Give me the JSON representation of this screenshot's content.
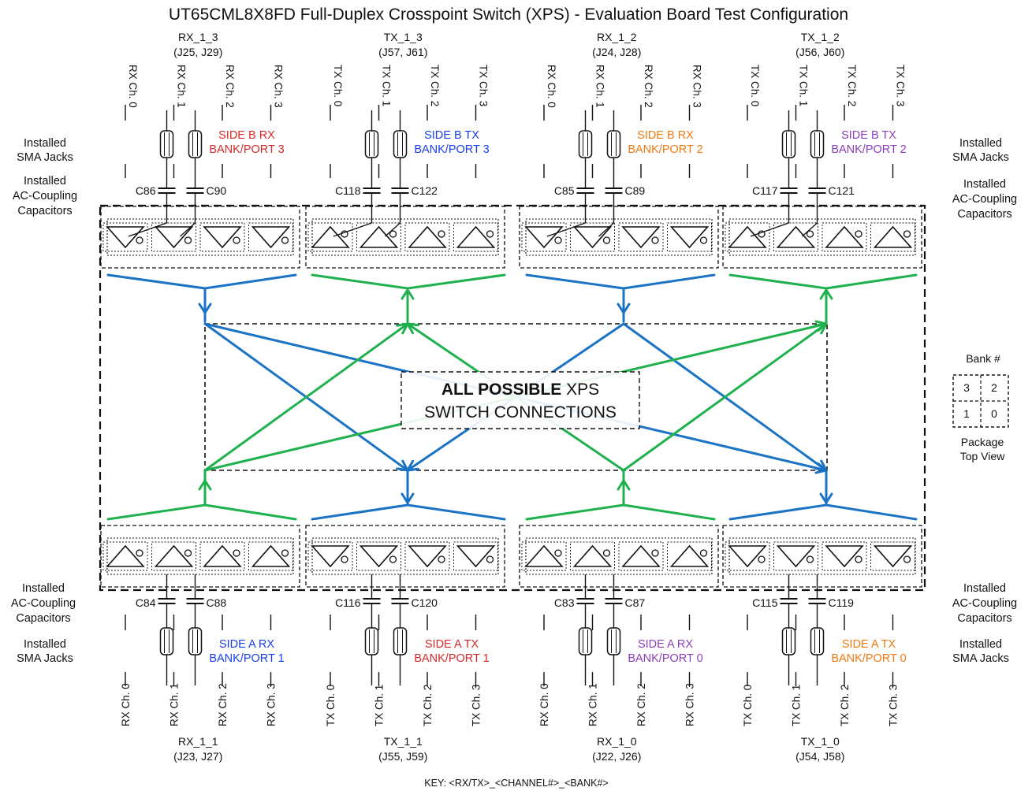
{
  "title": "UT65CML8X8FD Full-Duplex Crosspoint Switch (XPS) - Evaluation Board Test Configuration",
  "side_labels": {
    "left_top_sma": "Installed\nSMA Jacks",
    "left_top_cap": "Installed\nAC-Coupling\nCapacitors",
    "right_top_sma": "Installed\nSMA Jacks",
    "right_top_cap": "Installed\nAC-Coupling\nCapacitors",
    "left_bottom_cap": "Installed\nAC-Coupling\nCapacitors",
    "left_bottom_sma": "Installed\nSMA Jacks",
    "right_bottom_cap": "Installed\nAC-Coupling\nCapacitors",
    "right_bottom_sma": "Installed\nSMA Jacks"
  },
  "center_label": {
    "bold": "ALL POSSIBLE",
    "rest": " XPS",
    "line2": "SWITCH CONNECTIONS"
  },
  "bank_legend": {
    "title": "Bank #",
    "cells": [
      "3",
      "2",
      "1",
      "0"
    ],
    "caption": "Package\nTop View"
  },
  "key": "KEY:  <RX/TX>_<CHANNEL#>_<BANK#>",
  "colors": {
    "rx_arrow": "#1a73c4",
    "tx_arrow": "#1fb14e",
    "red": "#d42a2a",
    "blue": "#1a3cf0",
    "orange": "#f07a12",
    "purple": "#8a3fb8"
  },
  "top_groups": [
    {
      "name": "RX_1_3",
      "jacks": "(J25, J29)",
      "channels": [
        "RX Ch. 0",
        "RX Ch. 1",
        "RX Ch. 2",
        "RX Ch. 3"
      ],
      "side1": "SIDE B RX",
      "side2": "BANK/PORT  3",
      "color": "#d42a2a",
      "cap_left": "C86",
      "cap_right": "C90"
    },
    {
      "name": "TX_1_3",
      "jacks": "(J57, J61)",
      "channels": [
        "TX Ch. 0",
        "TX Ch. 1",
        "TX Ch. 2",
        "TX Ch. 3"
      ],
      "side1": "SIDE B TX",
      "side2": "BANK/PORT  3",
      "color": "#1a3cf0",
      "cap_left": "C118",
      "cap_right": "C122"
    },
    {
      "name": "RX_1_2",
      "jacks": "(J24, J28)",
      "channels": [
        "RX Ch. 0",
        "RX Ch. 1",
        "RX Ch. 2",
        "RX Ch. 3"
      ],
      "side1": "SIDE B RX",
      "side2": "BANK/PORT  2",
      "color": "#f07a12",
      "cap_left": "C85",
      "cap_right": "C89"
    },
    {
      "name": "TX_1_2",
      "jacks": "(J56, J60)",
      "channels": [
        "TX Ch. 0",
        "TX Ch. 1",
        "TX Ch. 2",
        "TX Ch. 3"
      ],
      "side1": "SIDE B TX",
      "side2": "BANK/PORT  2",
      "color": "#8a3fb8",
      "cap_left": "C117",
      "cap_right": "C121"
    }
  ],
  "bottom_groups": [
    {
      "name": "RX_1_1",
      "jacks": "(J23, J27)",
      "channels": [
        "RX Ch. 0",
        "RX Ch. 1",
        "RX Ch. 2",
        "RX Ch. 3"
      ],
      "side1": "SIDE A RX",
      "side2": "BANK/PORT  1",
      "color": "#1a3cf0",
      "cap_left": "C84",
      "cap_right": "C88"
    },
    {
      "name": "TX_1_1",
      "jacks": "(J55, J59)",
      "channels": [
        "TX Ch. 0",
        "TX Ch. 1",
        "TX Ch. 2",
        "TX Ch. 3"
      ],
      "side1": "SIDE A TX",
      "side2": "BANK/PORT  1",
      "color": "#d42a2a",
      "cap_left": "C116",
      "cap_right": "C120"
    },
    {
      "name": "RX_1_0",
      "jacks": "(J22, J26)",
      "channels": [
        "RX Ch. 0",
        "RX Ch. 1",
        "RX Ch. 2",
        "RX Ch. 3"
      ],
      "side1": "SIDE A RX",
      "side2": "BANK/PORT  0",
      "color": "#8a3fb8",
      "cap_left": "C83",
      "cap_right": "C87"
    },
    {
      "name": "TX_1_0",
      "jacks": "(J54, J58)",
      "channels": [
        "TX Ch. 0",
        "TX Ch. 1",
        "TX Ch. 2",
        "TX Ch. 3"
      ],
      "side1": "SIDE A TX",
      "side2": "BANK/PORT  0",
      "color": "#f07a12",
      "cap_left": "C115",
      "cap_right": "C119"
    }
  ]
}
